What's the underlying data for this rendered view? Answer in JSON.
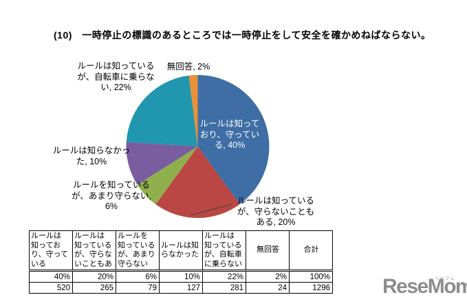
{
  "title": "(10)　一時停止の標識のあるところでは一時停止をして安全を確かめねばならない。",
  "chart_data": {
    "type": "pie",
    "start_angle_deg": -90,
    "direction": "clockwise",
    "slices": [
      {
        "label": "ルールは知っており、守っている",
        "value": 40,
        "color": "#3E6EA5"
      },
      {
        "label": "ルールは知っているが、守らないこともある",
        "value": 20,
        "color": "#BA4743"
      },
      {
        "label": "ルールを知っているが、あまり守らない",
        "value": 6,
        "color": "#8FAF4D"
      },
      {
        "label": "ルールは知らなかった",
        "value": 10,
        "color": "#7A5CA0"
      },
      {
        "label": "ルールは知っているが、自転車に乗らない",
        "value": 22,
        "color": "#2097AE"
      },
      {
        "label": "無回答",
        "value": 2,
        "color": "#E99038"
      }
    ]
  },
  "callouts": {
    "keep": "ルールは知って\nおり、守ってい\nる, 40%",
    "sometimes_break": "ルールは知っている\nが、守らないことも\nある, 20%",
    "rarely_keep": "ルールを知っている\nが、あまり守らない,\n6%",
    "did_not_know": "ルールは知らなかっ\nた, 10%",
    "no_ride": "ルールは知っている\nが、自転車に乗らな\nい, 22%",
    "no_answer": "無回答, 2%"
  },
  "table": {
    "headers": [
      "ルールは\n知ってお\nり、守って\nいる",
      "ルールは\n知っている\nが、守らな\nいこともあ",
      "ルールを\n知っている\nが、あまり\n守らない",
      "ルールは知\nらなかった",
      "ルールは\n知っている\nが、自転車\nに乗らない",
      "無回答",
      "合計"
    ],
    "percent_row": [
      "40%",
      "20%",
      "6%",
      "10%",
      "22%",
      "2%",
      "100%"
    ],
    "count_row": [
      "520",
      "265",
      "79",
      "127",
      "281",
      "24",
      "1296"
    ]
  },
  "logo": {
    "text": "ReseMom.",
    "furigana": "リセマム"
  }
}
